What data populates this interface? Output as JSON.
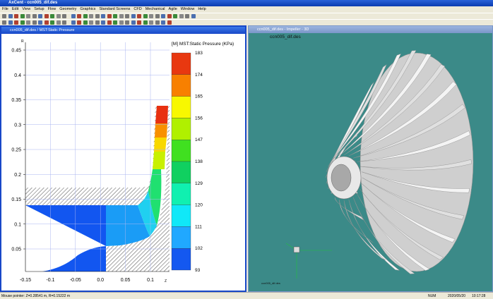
{
  "window": {
    "title": "AxCent - ccn005_dif.des"
  },
  "menu": [
    "File",
    "Edit",
    "View",
    "Setup",
    "Flow",
    "Geometry",
    "Graphics",
    "Standard Screens",
    "CFD",
    "Mechanical",
    "Agile",
    "Window",
    "Help"
  ],
  "left_panel": {
    "title": "ccn005_dif.des / MST:Static Pressure",
    "axis_y_label": "R",
    "axis_x_label": "Z",
    "yticks": [
      "0.45",
      "0.4",
      "0.35",
      "0.3",
      "0.25",
      "0.2",
      "0.15",
      "0.1",
      "0.05"
    ],
    "xticks": [
      "-0.15",
      "-0.1",
      "-0.05",
      "0.0",
      "0.05",
      "0.1"
    ],
    "legend": {
      "title": "[M] MST:Static Pressure  (KPa)",
      "levels": [
        "183",
        "174",
        "165",
        "156",
        "147",
        "138",
        "129",
        "120",
        "111",
        "102",
        "93"
      ]
    }
  },
  "right_panel": {
    "title": "ccn005_dif.des - Impeller - 3D",
    "view_label": "ccn005_dif.des",
    "footer_label": "ccn005_dif.des"
  },
  "status_bar": {
    "pointer": "Mouse pointer: Z=0.28541 m, R=0.15222 m",
    "mode": "NUM",
    "date": "2020/05/20",
    "time": "10:17:28"
  }
}
